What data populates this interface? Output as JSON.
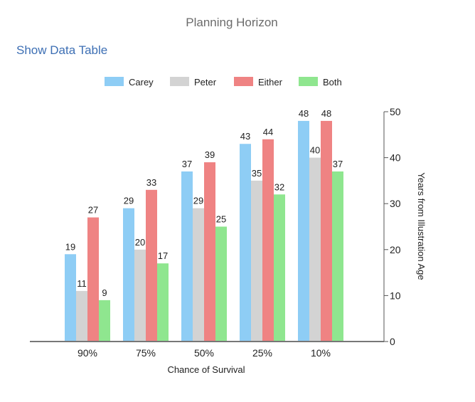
{
  "show_table_label": "Show Data Table",
  "chart_data": {
    "type": "bar",
    "title": "Planning Horizon",
    "categories": [
      "90%",
      "75%",
      "50%",
      "25%",
      "10%"
    ],
    "series": [
      {
        "name": "Carey",
        "color": "#8ecdf5",
        "values": [
          19,
          29,
          37,
          43,
          48
        ]
      },
      {
        "name": "Peter",
        "color": "#d3d3d3",
        "values": [
          11,
          20,
          29,
          35,
          40
        ]
      },
      {
        "name": "Either",
        "color": "#ef8383",
        "values": [
          27,
          33,
          39,
          44,
          48
        ]
      },
      {
        "name": "Both",
        "color": "#8fe68f",
        "values": [
          9,
          17,
          25,
          32,
          37
        ]
      }
    ],
    "xlabel": "Chance of Survival",
    "ylabel": "Years from Illustration Age",
    "ylim": [
      0,
      50
    ],
    "yticks": [
      0,
      10,
      20,
      30,
      40,
      50
    ],
    "y_axis_side": "right",
    "legend_position": "top",
    "grid": false,
    "data_labels": true
  }
}
